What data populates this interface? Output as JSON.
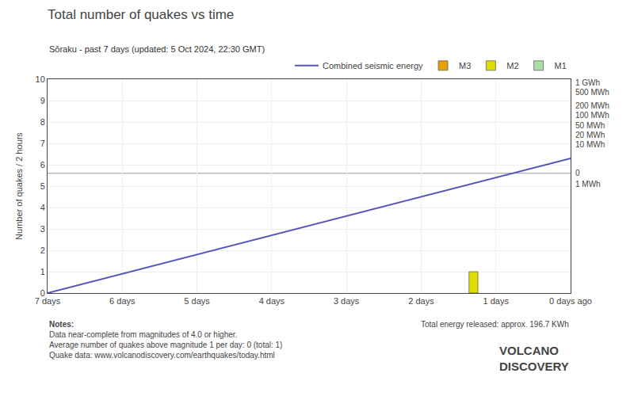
{
  "chart_data": {
    "type": "line",
    "title": "Total number of quakes vs time",
    "subtitle": "Sōraku - past 7 days (updated: 5 Oct 2024, 22:30 GMT)",
    "y_label": "Number of quakes / 2 hours",
    "xlim": [
      7,
      0
    ],
    "xticks": [
      {
        "value": 7,
        "label": "7 days"
      },
      {
        "value": 6,
        "label": "6 days"
      },
      {
        "value": 5,
        "label": "5 days"
      },
      {
        "value": 4,
        "label": "4 days"
      },
      {
        "value": 3,
        "label": "3 days"
      },
      {
        "value": 2,
        "label": "2 days"
      },
      {
        "value": 1,
        "label": "1 days"
      },
      {
        "value": 0,
        "label": "0 days ago"
      }
    ],
    "ylim": [
      0,
      10
    ],
    "yticks": [
      0,
      1,
      2,
      3,
      4,
      5,
      6,
      7,
      8,
      9,
      10
    ],
    "grid": true,
    "series": [
      {
        "name": "Combined seismic energy",
        "type": "line",
        "color": "#5555bb",
        "x": [
          7,
          0
        ],
        "values": [
          0,
          6.3
        ]
      },
      {
        "name": "M3",
        "type": "bar",
        "color": "#e8a000",
        "x": [],
        "values": []
      },
      {
        "name": "M2",
        "type": "bar",
        "color": "#dddd00",
        "x": [
          1.3
        ],
        "values": [
          1.0
        ]
      },
      {
        "name": "M1",
        "type": "bar",
        "color": "#aaddaa",
        "x": [],
        "values": []
      }
    ],
    "reference_line": 5.6,
    "right_axis_labels": [
      {
        "y": 9.85,
        "label": "1 GWh"
      },
      {
        "y": 9.4,
        "label": "500 MWh"
      },
      {
        "y": 8.75,
        "label": "200 MWh"
      },
      {
        "y": 8.3,
        "label": "100 MWh"
      },
      {
        "y": 7.85,
        "label": "50 MWh"
      },
      {
        "y": 7.4,
        "label": "20 MWh"
      },
      {
        "y": 6.95,
        "label": "10 MWh"
      },
      {
        "y": 5.1,
        "label": "1 MWh"
      },
      {
        "y": 5.6,
        "label": "0"
      }
    ],
    "notes": [
      "Notes:",
      "Data near-complete from magnitudes of 4.0 or higher.",
      "Average number of quakes above magnitude 1 per day: 0 (total: 1)",
      "Quake data: www.volcanodiscovery.com/earthquakes/today.html"
    ],
    "annotations": [
      "Total energy released: approx. 196.7 KWh"
    ],
    "logo": [
      "VOLCANO",
      "DISCOVERY"
    ]
  }
}
